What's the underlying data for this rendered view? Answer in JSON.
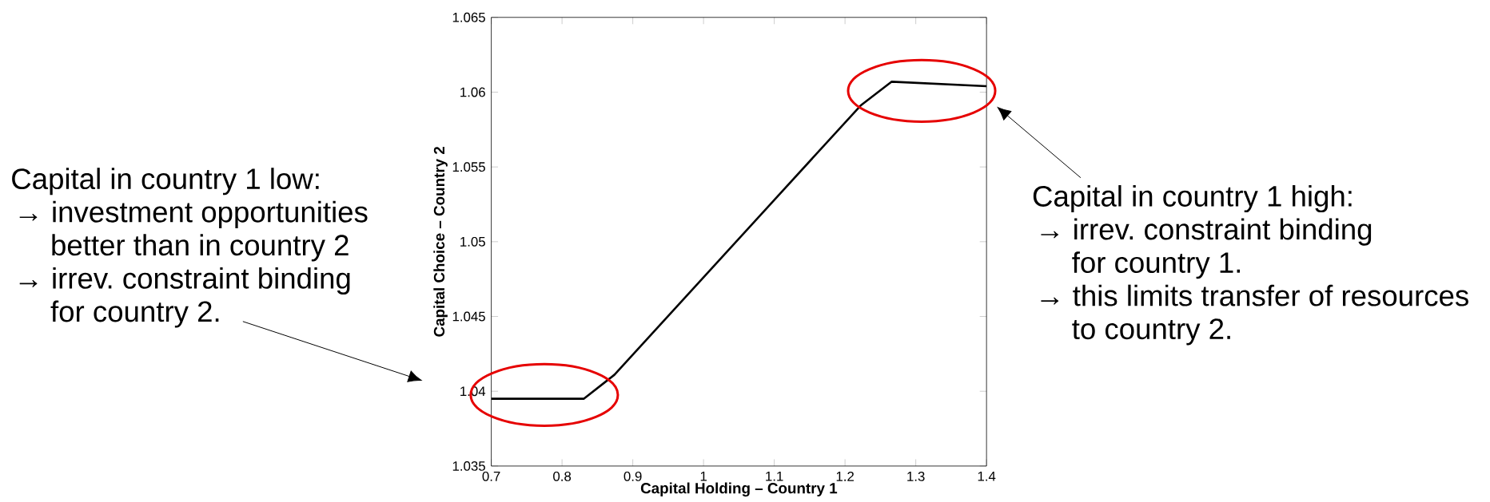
{
  "chart_data": {
    "type": "line",
    "xlabel": "Capital Holding – Country 1",
    "ylabel": "Capital Choice – Country 2",
    "x": [
      0.7,
      0.831,
      0.874,
      1.222,
      1.266,
      1.4
    ],
    "series": [
      {
        "color": "#000000",
        "line_style": "solid",
        "values": [
          1.0395,
          1.0395,
          1.0411,
          1.0591,
          1.0607,
          1.0604
        ]
      }
    ],
    "xlim": [
      0.7,
      1.4
    ],
    "ylim": [
      1.035,
      1.065
    ],
    "xticks": [
      0.7,
      0.8,
      0.9,
      1,
      1.1,
      1.2,
      1.3,
      1.4
    ],
    "yticks": [
      1.035,
      1.04,
      1.045,
      1.05,
      1.055,
      1.06,
      1.065
    ],
    "grid": false,
    "annotations": [
      "Capital in country 1 low:",
      "→ investment opportunities better than in country 2",
      "→ irrev. constraint binding for country 2.",
      "Capital in country 1 high:",
      "→ irrev. constraint binding for country 1.",
      "→ this limits transfer of resources to country 2."
    ]
  }
}
